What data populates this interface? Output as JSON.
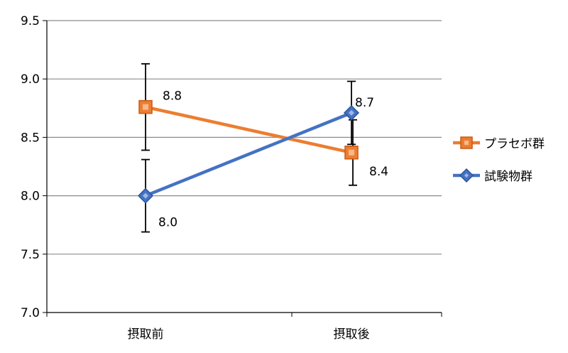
{
  "chart_data": {
    "type": "line",
    "categories": [
      "摂取前",
      "摂取後"
    ],
    "ylim": [
      7.0,
      9.5
    ],
    "yticks": [
      "7.0",
      "7.5",
      "8.0",
      "8.5",
      "9.0",
      "9.5"
    ],
    "grid": true,
    "legend_position": "right",
    "series": [
      {
        "name": "プラセボ群",
        "color": "#ED7D31",
        "marker": "square",
        "values": [
          8.76,
          8.37
        ],
        "error": [
          0.37,
          0.28
        ],
        "labels": [
          "8.8",
          "8.4"
        ]
      },
      {
        "name": "試験物群",
        "color": "#4472C4",
        "marker": "diamond",
        "values": [
          8.0,
          8.71
        ],
        "error": [
          0.31,
          0.27
        ],
        "labels": [
          "8.0",
          "8.7"
        ]
      }
    ]
  }
}
